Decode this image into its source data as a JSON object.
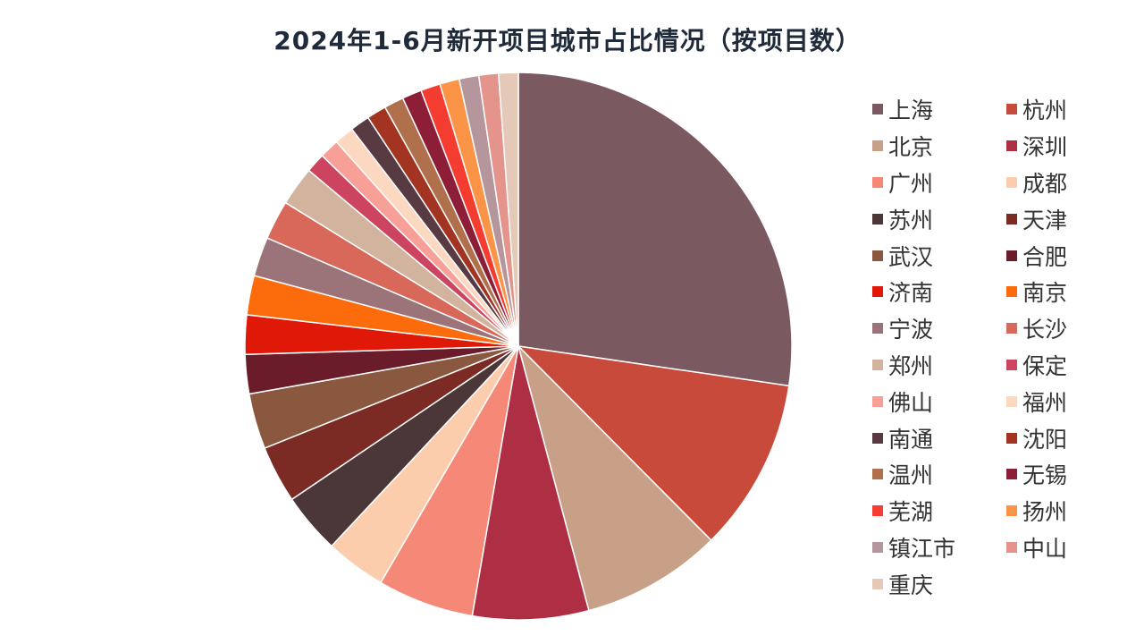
{
  "chart_data": {
    "type": "pie",
    "title": "2024年1-6月新开项目城市占比情况（按项目数）",
    "legend_position": "right",
    "slices": [
      {
        "label": "上海",
        "value": 28.3,
        "color": "#7b5960"
      },
      {
        "label": "杭州",
        "value": 10.6,
        "color": "#c84a3a"
      },
      {
        "label": "北京",
        "value": 8.6,
        "color": "#c8a088"
      },
      {
        "label": "深圳",
        "value": 7.1,
        "color": "#ae2e44"
      },
      {
        "label": "广州",
        "value": 5.9,
        "color": "#f68878"
      },
      {
        "label": "成都",
        "value": 3.7,
        "color": "#fccdac"
      },
      {
        "label": "苏州",
        "value": 3.7,
        "color": "#4b3638"
      },
      {
        "label": "天津",
        "value": 3.5,
        "color": "#7c2a24"
      },
      {
        "label": "武汉",
        "value": 3.4,
        "color": "#8a583e"
      },
      {
        "label": "合肥",
        "value": 2.4,
        "color": "#6a1c2a"
      },
      {
        "label": "济南",
        "value": 2.4,
        "color": "#e01808"
      },
      {
        "label": "南京",
        "value": 2.4,
        "color": "#fc6c0c"
      },
      {
        "label": "宁波",
        "value": 2.4,
        "color": "#9a7478"
      },
      {
        "label": "长沙",
        "value": 2.4,
        "color": "#d8685a"
      },
      {
        "label": "郑州",
        "value": 2.4,
        "color": "#d2b49e"
      },
      {
        "label": "保定",
        "value": 1.2,
        "color": "#cc4460"
      },
      {
        "label": "佛山",
        "value": 1.2,
        "color": "#f8a098"
      },
      {
        "label": "福州",
        "value": 1.2,
        "color": "#fcd8c0"
      },
      {
        "label": "南通",
        "value": 1.2,
        "color": "#583a42"
      },
      {
        "label": "沈阳",
        "value": 1.2,
        "color": "#a43422"
      },
      {
        "label": "温州",
        "value": 1.2,
        "color": "#b0704c"
      },
      {
        "label": "无锡",
        "value": 1.2,
        "color": "#8c1e38"
      },
      {
        "label": "芜湖",
        "value": 1.2,
        "color": "#f43c30"
      },
      {
        "label": "扬州",
        "value": 1.2,
        "color": "#fc9448"
      },
      {
        "label": "镇江市",
        "value": 1.2,
        "color": "#b4969c"
      },
      {
        "label": "中山",
        "value": 1.2,
        "color": "#e4948a"
      },
      {
        "label": "重庆",
        "value": 1.2,
        "color": "#e4c8b8"
      }
    ]
  }
}
